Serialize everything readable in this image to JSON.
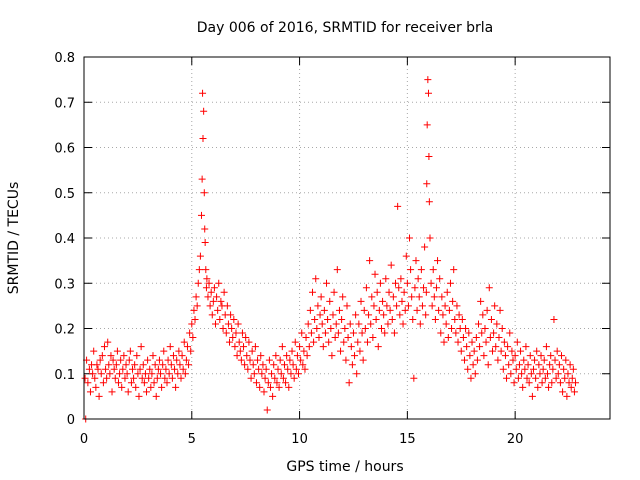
{
  "chart_data": {
    "type": "scatter",
    "title": "Day 006 of 2016, SRMTID for receiver brla",
    "xlabel": "GPS time / hours",
    "ylabel": "SRMTID / TECUs",
    "xlim": [
      0,
      24.4
    ],
    "ylim": [
      0,
      0.8
    ],
    "x_ticks": [
      0,
      5,
      10,
      15,
      20
    ],
    "y_ticks": [
      0,
      0.1,
      0.2,
      0.3,
      0.4,
      0.5,
      0.6,
      0.7,
      0.8
    ],
    "grid": true,
    "marker": "+",
    "color": "#ff0000",
    "series": [
      {
        "name": "SRMTID",
        "x": [
          0.05,
          0.08,
          0.12,
          0.18,
          0.25,
          0.3,
          0.35,
          0.4,
          0.45,
          0.5,
          0.55,
          0.6,
          0.65,
          0.7,
          0.75,
          0.8,
          0.85,
          0.9,
          0.95,
          1.0,
          1.05,
          1.1,
          1.15,
          1.2,
          1.25,
          1.3,
          1.35,
          1.4,
          1.45,
          1.5,
          1.55,
          1.6,
          1.65,
          1.7,
          1.75,
          1.8,
          1.85,
          1.9,
          1.95,
          2.0,
          2.05,
          2.1,
          2.15,
          2.2,
          2.25,
          2.3,
          2.35,
          2.4,
          2.45,
          2.5,
          2.55,
          2.6,
          2.65,
          2.7,
          2.75,
          2.8,
          2.85,
          2.9,
          2.95,
          3.0,
          3.05,
          3.1,
          3.15,
          3.2,
          3.25,
          3.3,
          3.35,
          3.4,
          3.45,
          3.5,
          3.55,
          3.6,
          3.65,
          3.7,
          3.75,
          3.8,
          3.85,
          3.9,
          3.95,
          4.0,
          4.05,
          4.1,
          4.15,
          4.2,
          4.25,
          4.3,
          4.35,
          4.4,
          4.45,
          4.5,
          4.55,
          4.6,
          4.65,
          4.7,
          4.75,
          4.8,
          4.85,
          4.9,
          4.95,
          5.0,
          5.05,
          5.1,
          5.15,
          5.2,
          5.25,
          5.3,
          5.35,
          5.4,
          5.45,
          5.48,
          5.5,
          5.52,
          5.55,
          5.58,
          5.6,
          5.62,
          5.65,
          5.68,
          5.7,
          5.75,
          5.8,
          5.85,
          5.9,
          5.95,
          6.0,
          6.05,
          6.1,
          6.15,
          6.2,
          6.25,
          6.3,
          6.35,
          6.4,
          6.45,
          6.5,
          6.55,
          6.6,
          6.65,
          6.7,
          6.75,
          6.8,
          6.85,
          6.9,
          6.95,
          7.0,
          7.05,
          7.1,
          7.15,
          7.2,
          7.25,
          7.3,
          7.35,
          7.4,
          7.45,
          7.5,
          7.55,
          7.6,
          7.65,
          7.7,
          7.75,
          7.8,
          7.85,
          7.9,
          7.95,
          8.0,
          8.05,
          8.1,
          8.15,
          8.2,
          8.25,
          8.3,
          8.35,
          8.4,
          8.45,
          8.5,
          8.55,
          8.6,
          8.65,
          8.7,
          8.75,
          8.8,
          8.85,
          8.9,
          8.95,
          9.0,
          9.05,
          9.1,
          9.15,
          9.2,
          9.25,
          9.3,
          9.35,
          9.4,
          9.45,
          9.5,
          9.55,
          9.6,
          9.65,
          9.7,
          9.75,
          9.8,
          9.85,
          9.9,
          9.95,
          10.0,
          10.05,
          10.1,
          10.15,
          10.2,
          10.25,
          10.3,
          10.35,
          10.4,
          10.45,
          10.5,
          10.55,
          10.6,
          10.65,
          10.7,
          10.75,
          10.8,
          10.85,
          10.9,
          10.95,
          11.0,
          11.05,
          11.1,
          11.15,
          11.2,
          11.25,
          11.3,
          11.35,
          11.4,
          11.45,
          11.5,
          11.55,
          11.6,
          11.65,
          11.7,
          11.75,
          11.8,
          11.85,
          11.9,
          11.95,
          12.0,
          12.05,
          12.1,
          12.15,
          12.2,
          12.25,
          12.3,
          12.35,
          12.4,
          12.45,
          12.5,
          12.55,
          12.6,
          12.65,
          12.7,
          12.75,
          12.8,
          12.85,
          12.9,
          12.95,
          13.0,
          13.05,
          13.1,
          13.15,
          13.2,
          13.25,
          13.3,
          13.35,
          13.4,
          13.45,
          13.5,
          13.55,
          13.6,
          13.65,
          13.7,
          13.75,
          13.8,
          13.85,
          13.9,
          13.95,
          14.0,
          14.05,
          14.1,
          14.15,
          14.2,
          14.25,
          14.3,
          14.35,
          14.4,
          14.45,
          14.5,
          14.55,
          14.6,
          14.65,
          14.7,
          14.75,
          14.8,
          14.85,
          14.9,
          14.95,
          15.0,
          15.05,
          15.1,
          15.15,
          15.2,
          15.25,
          15.3,
          15.35,
          15.4,
          15.45,
          15.5,
          15.55,
          15.6,
          15.65,
          15.7,
          15.75,
          15.8,
          15.85,
          15.88,
          15.9,
          15.92,
          15.95,
          15.98,
          16.0,
          16.02,
          16.05,
          16.1,
          16.15,
          16.2,
          16.25,
          16.3,
          16.35,
          16.4,
          16.45,
          16.5,
          16.55,
          16.6,
          16.65,
          16.7,
          16.75,
          16.8,
          16.85,
          16.9,
          16.95,
          17.0,
          17.05,
          17.1,
          17.15,
          17.2,
          17.25,
          17.3,
          17.35,
          17.4,
          17.45,
          17.5,
          17.55,
          17.6,
          17.65,
          17.7,
          17.75,
          17.8,
          17.85,
          17.9,
          17.95,
          18.0,
          18.05,
          18.1,
          18.15,
          18.2,
          18.25,
          18.3,
          18.35,
          18.4,
          18.45,
          18.5,
          18.55,
          18.6,
          18.65,
          18.7,
          18.75,
          18.8,
          18.85,
          18.9,
          18.95,
          19.0,
          19.05,
          19.1,
          19.15,
          19.2,
          19.25,
          19.3,
          19.35,
          19.4,
          19.45,
          19.5,
          19.55,
          19.6,
          19.65,
          19.7,
          19.75,
          19.8,
          19.85,
          19.9,
          19.95,
          20.0,
          20.05,
          20.1,
          20.15,
          20.2,
          20.25,
          20.3,
          20.35,
          20.4,
          20.45,
          20.5,
          20.55,
          20.6,
          20.65,
          20.7,
          20.75,
          20.8,
          20.85,
          20.9,
          20.95,
          21.0,
          21.05,
          21.1,
          21.15,
          21.2,
          21.25,
          21.3,
          21.35,
          21.4,
          21.45,
          21.5,
          21.55,
          21.6,
          21.65,
          21.7,
          21.75,
          21.8,
          21.85,
          21.9,
          21.95,
          22.0,
          22.05,
          22.1,
          22.15,
          22.2,
          22.25,
          22.3,
          22.35,
          22.4,
          22.45,
          22.5,
          22.55,
          22.6,
          22.65,
          22.7,
          22.75,
          22.8
        ],
        "y": [
          0.09,
          0.0,
          0.13,
          0.08,
          0.11,
          0.06,
          0.12,
          0.1,
          0.15,
          0.09,
          0.07,
          0.12,
          0.11,
          0.05,
          0.13,
          0.1,
          0.14,
          0.08,
          0.16,
          0.11,
          0.09,
          0.17,
          0.12,
          0.1,
          0.14,
          0.06,
          0.13,
          0.11,
          0.09,
          0.12,
          0.15,
          0.08,
          0.1,
          0.13,
          0.07,
          0.11,
          0.14,
          0.09,
          0.12,
          0.1,
          0.06,
          0.13,
          0.15,
          0.08,
          0.11,
          0.09,
          0.12,
          0.07,
          0.14,
          0.1,
          0.05,
          0.11,
          0.16,
          0.09,
          0.12,
          0.08,
          0.1,
          0.06,
          0.13,
          0.09,
          0.11,
          0.07,
          0.1,
          0.14,
          0.08,
          0.12,
          0.05,
          0.09,
          0.11,
          0.13,
          0.1,
          0.07,
          0.12,
          0.15,
          0.09,
          0.11,
          0.08,
          0.13,
          0.1,
          0.16,
          0.12,
          0.09,
          0.14,
          0.11,
          0.07,
          0.13,
          0.1,
          0.15,
          0.12,
          0.09,
          0.14,
          0.11,
          0.17,
          0.1,
          0.13,
          0.16,
          0.12,
          0.19,
          0.15,
          0.21,
          0.18,
          0.24,
          0.22,
          0.27,
          0.25,
          0.3,
          0.33,
          0.36,
          0.45,
          0.53,
          0.72,
          0.62,
          0.68,
          0.5,
          0.42,
          0.39,
          0.33,
          0.29,
          0.31,
          0.27,
          0.3,
          0.25,
          0.28,
          0.23,
          0.26,
          0.29,
          0.21,
          0.27,
          0.24,
          0.3,
          0.22,
          0.26,
          0.25,
          0.2,
          0.28,
          0.23,
          0.19,
          0.25,
          0.21,
          0.17,
          0.23,
          0.2,
          0.18,
          0.22,
          0.16,
          0.19,
          0.14,
          0.21,
          0.17,
          0.15,
          0.13,
          0.19,
          0.16,
          0.12,
          0.18,
          0.14,
          0.11,
          0.17,
          0.13,
          0.09,
          0.15,
          0.12,
          0.1,
          0.16,
          0.08,
          0.13,
          0.11,
          0.07,
          0.14,
          0.1,
          0.12,
          0.06,
          0.09,
          0.11,
          0.02,
          0.08,
          0.13,
          0.07,
          0.1,
          0.05,
          0.12,
          0.09,
          0.14,
          0.08,
          0.11,
          0.07,
          0.13,
          0.1,
          0.16,
          0.09,
          0.12,
          0.08,
          0.14,
          0.11,
          0.07,
          0.13,
          0.1,
          0.15,
          0.12,
          0.09,
          0.17,
          0.11,
          0.14,
          0.1,
          0.16,
          0.13,
          0.19,
          0.12,
          0.15,
          0.11,
          0.18,
          0.14,
          0.21,
          0.16,
          0.24,
          0.19,
          0.28,
          0.17,
          0.22,
          0.31,
          0.2,
          0.25,
          0.18,
          0.23,
          0.27,
          0.21,
          0.16,
          0.24,
          0.19,
          0.3,
          0.22,
          0.17,
          0.26,
          0.2,
          0.14,
          0.23,
          0.28,
          0.18,
          0.21,
          0.33,
          0.19,
          0.24,
          0.15,
          0.22,
          0.27,
          0.17,
          0.2,
          0.13,
          0.25,
          0.18,
          0.08,
          0.21,
          0.16,
          0.12,
          0.19,
          0.14,
          0.23,
          0.1,
          0.17,
          0.21,
          0.15,
          0.26,
          0.19,
          0.13,
          0.24,
          0.2,
          0.29,
          0.17,
          0.23,
          0.35,
          0.21,
          0.27,
          0.18,
          0.25,
          0.32,
          0.22,
          0.28,
          0.16,
          0.24,
          0.3,
          0.2,
          0.26,
          0.23,
          0.19,
          0.31,
          0.25,
          0.21,
          0.28,
          0.24,
          0.34,
          0.22,
          0.27,
          0.19,
          0.3,
          0.25,
          0.47,
          0.29,
          0.23,
          0.31,
          0.26,
          0.21,
          0.28,
          0.24,
          0.36,
          0.3,
          0.25,
          0.4,
          0.33,
          0.27,
          0.22,
          0.09,
          0.29,
          0.35,
          0.24,
          0.31,
          0.27,
          0.21,
          0.33,
          0.25,
          0.29,
          0.38,
          0.23,
          0.28,
          0.52,
          0.65,
          0.75,
          0.72,
          0.58,
          0.48,
          0.4,
          0.3,
          0.25,
          0.33,
          0.27,
          0.22,
          0.29,
          0.35,
          0.24,
          0.31,
          0.19,
          0.27,
          0.23,
          0.17,
          0.25,
          0.21,
          0.28,
          0.18,
          0.24,
          0.3,
          0.2,
          0.26,
          0.33,
          0.22,
          0.19,
          0.25,
          0.17,
          0.23,
          0.2,
          0.15,
          0.22,
          0.18,
          0.13,
          0.2,
          0.16,
          0.11,
          0.19,
          0.14,
          0.09,
          0.17,
          0.12,
          0.15,
          0.1,
          0.18,
          0.13,
          0.21,
          0.16,
          0.26,
          0.19,
          0.23,
          0.14,
          0.2,
          0.17,
          0.24,
          0.12,
          0.29,
          0.18,
          0.22,
          0.15,
          0.19,
          0.25,
          0.16,
          0.21,
          0.13,
          0.18,
          0.24,
          0.15,
          0.2,
          0.11,
          0.17,
          0.14,
          0.09,
          0.16,
          0.12,
          0.19,
          0.1,
          0.15,
          0.13,
          0.08,
          0.14,
          0.11,
          0.17,
          0.09,
          0.12,
          0.15,
          0.1,
          0.07,
          0.13,
          0.11,
          0.16,
          0.09,
          0.12,
          0.08,
          0.14,
          0.1,
          0.05,
          0.11,
          0.13,
          0.09,
          0.15,
          0.07,
          0.12,
          0.1,
          0.14,
          0.08,
          0.11,
          0.13,
          0.09,
          0.16,
          0.1,
          0.07,
          0.12,
          0.14,
          0.08,
          0.11,
          0.22,
          0.13,
          0.09,
          0.15,
          0.1,
          0.12,
          0.08,
          0.14,
          0.06,
          0.11,
          0.09,
          0.13,
          0.05,
          0.1,
          0.08,
          0.12,
          0.07,
          0.09,
          0.11,
          0.06,
          0.08
        ]
      }
    ]
  }
}
